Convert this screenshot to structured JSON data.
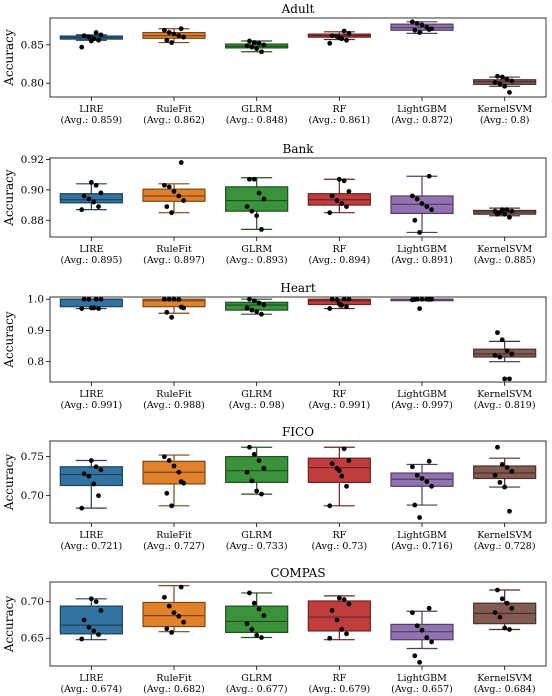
{
  "chart_data": [
    {
      "type": "box",
      "title": "Adult",
      "ylabel": "Accuracy",
      "ylim": [
        0.782,
        0.885
      ],
      "yticks": [
        "0.80",
        "0.85"
      ],
      "categories": [
        "LIRE",
        "RuleFit",
        "GLRM",
        "RF",
        "LightGBM",
        "KernelSVM"
      ],
      "averages": [
        "(Avg.: 0.859)",
        "(Avg.: 0.862)",
        "(Avg.: 0.848)",
        "(Avg.: 0.861)",
        "(Avg.: 0.872)",
        "(Avg.: 0.8)"
      ],
      "boxes": [
        {
          "q1": 0.8575,
          "q3": 0.8615,
          "median": 0.8595,
          "whisker_low": 0.856,
          "whisker_high": 0.863,
          "points": [
            0.847,
            0.856,
            0.858,
            0.86,
            0.862,
            0.863,
            0.866,
            0.855
          ]
        },
        {
          "q1": 0.8585,
          "q3": 0.866,
          "median": 0.862,
          "whisker_low": 0.853,
          "whisker_high": 0.871,
          "points": [
            0.853,
            0.856,
            0.86,
            0.862,
            0.864,
            0.866,
            0.869,
            0.871
          ]
        },
        {
          "q1": 0.846,
          "q3": 0.851,
          "median": 0.848,
          "whisker_low": 0.841,
          "whisker_high": 0.855,
          "points": [
            0.841,
            0.845,
            0.847,
            0.849,
            0.85,
            0.852,
            0.853,
            0.855
          ]
        },
        {
          "q1": 0.86,
          "q3": 0.864,
          "median": 0.862,
          "whisker_low": 0.857,
          "whisker_high": 0.867,
          "points": [
            0.852,
            0.856,
            0.858,
            0.861,
            0.862,
            0.865,
            0.868,
            0.859
          ]
        },
        {
          "q1": 0.869,
          "q3": 0.877,
          "median": 0.8725,
          "whisker_low": 0.865,
          "whisker_high": 0.88,
          "points": [
            0.866,
            0.869,
            0.871,
            0.873,
            0.876,
            0.878,
            0.88,
            0.87
          ]
        },
        {
          "q1": 0.7985,
          "q3": 0.8045,
          "median": 0.802,
          "whisker_low": 0.796,
          "whisker_high": 0.808,
          "points": [
            0.788,
            0.796,
            0.799,
            0.801,
            0.803,
            0.805,
            0.808,
            0.809
          ]
        }
      ]
    },
    {
      "type": "box",
      "title": "Bank",
      "ylabel": "Accuracy",
      "ylim": [
        0.869,
        0.921
      ],
      "yticks": [
        "0.88",
        "0.90",
        "0.92"
      ],
      "categories": [
        "LIRE",
        "RuleFit",
        "GLRM",
        "RF",
        "LightGBM",
        "KernelSVM"
      ],
      "averages": [
        "(Avg.: 0.895)",
        "(Avg.: 0.897)",
        "(Avg.: 0.893)",
        "(Avg.: 0.894)",
        "(Avg.: 0.891)",
        "(Avg.: 0.885)"
      ],
      "boxes": [
        {
          "q1": 0.8915,
          "q3": 0.8975,
          "median": 0.8935,
          "whisker_low": 0.887,
          "whisker_high": 0.904,
          "points": [
            0.887,
            0.889,
            0.892,
            0.894,
            0.896,
            0.898,
            0.903,
            0.905
          ]
        },
        {
          "q1": 0.8925,
          "q3": 0.9005,
          "median": 0.896,
          "whisker_low": 0.885,
          "whisker_high": 0.904,
          "points": [
            0.885,
            0.889,
            0.893,
            0.896,
            0.899,
            0.902,
            0.903,
            0.918
          ]
        },
        {
          "q1": 0.886,
          "q3": 0.902,
          "median": 0.893,
          "whisker_low": 0.874,
          "whisker_high": 0.908,
          "points": [
            0.874,
            0.883,
            0.886,
            0.889,
            0.894,
            0.898,
            0.907,
            0.907
          ]
        },
        {
          "q1": 0.89,
          "q3": 0.8975,
          "median": 0.8935,
          "whisker_low": 0.885,
          "whisker_high": 0.907,
          "points": [
            0.885,
            0.889,
            0.891,
            0.893,
            0.896,
            0.899,
            0.906,
            0.907
          ]
        },
        {
          "q1": 0.8845,
          "q3": 0.896,
          "median": 0.8905,
          "whisker_low": 0.872,
          "whisker_high": 0.909,
          "points": [
            0.872,
            0.88,
            0.887,
            0.889,
            0.891,
            0.894,
            0.896,
            0.909
          ]
        },
        {
          "q1": 0.884,
          "q3": 0.8865,
          "median": 0.8855,
          "whisker_low": 0.883,
          "whisker_high": 0.888,
          "points": [
            0.882,
            0.884,
            0.885,
            0.886,
            0.886,
            0.887,
            0.887,
            0.884
          ]
        }
      ]
    },
    {
      "type": "box",
      "title": "Heart",
      "ylabel": "Accuracy",
      "ylim": [
        0.735,
        1.007
      ],
      "yticks": [
        "0.8",
        "0.9",
        "1.0"
      ],
      "categories": [
        "LIRE",
        "RuleFit",
        "GLRM",
        "RF",
        "LightGBM",
        "KernelSVM"
      ],
      "averages": [
        "(Avg.: 0.991)",
        "(Avg.: 0.988)",
        "(Avg.: 0.98)",
        "(Avg.: 0.991)",
        "(Avg.: 0.997)",
        "(Avg.: 0.819)"
      ],
      "boxes": [
        {
          "q1": 0.976,
          "q3": 1.0,
          "median": 1.0,
          "whisker_low": 0.97,
          "whisker_high": 1.0,
          "points": [
            0.97,
            0.97,
            0.972,
            1.0,
            1.0,
            1.0,
            1.0,
            0.972
          ]
        },
        {
          "q1": 0.976,
          "q3": 1.0,
          "median": 0.995,
          "whisker_low": 0.955,
          "whisker_high": 1.0,
          "points": [
            0.942,
            0.958,
            0.972,
            0.999,
            1.0,
            1.0,
            1.0,
            0.975
          ]
        },
        {
          "q1": 0.965,
          "q3": 0.99,
          "median": 0.981,
          "whisker_low": 0.952,
          "whisker_high": 1.0,
          "points": [
            0.952,
            0.96,
            0.965,
            0.972,
            0.982,
            0.988,
            0.995,
            1.0
          ]
        },
        {
          "q1": 0.983,
          "q3": 1.0,
          "median": 0.995,
          "whisker_low": 0.97,
          "whisker_high": 1.0,
          "points": [
            0.97,
            0.976,
            0.98,
            0.998,
            1.0,
            1.0,
            1.0,
            0.985
          ]
        },
        {
          "q1": 0.998,
          "q3": 1.0,
          "median": 1.0,
          "whisker_low": 0.998,
          "whisker_high": 1.0,
          "points": [
            0.97,
            0.999,
            1.0,
            1.0,
            1.0,
            1.0,
            0.998,
            0.999
          ]
        },
        {
          "q1": 0.815,
          "q3": 0.84,
          "median": 0.825,
          "whisker_low": 0.8,
          "whisker_high": 0.865,
          "points": [
            0.745,
            0.745,
            0.815,
            0.82,
            0.825,
            0.835,
            0.87,
            0.893
          ]
        }
      ]
    },
    {
      "type": "box",
      "title": "FICO",
      "ylabel": "Accuracy",
      "ylim": [
        0.665,
        0.77
      ],
      "yticks": [
        "0.70",
        "0.75"
      ],
      "categories": [
        "LIRE",
        "RuleFit",
        "GLRM",
        "RF",
        "LightGBM",
        "KernelSVM"
      ],
      "averages": [
        "(Avg.: 0.721)",
        "(Avg.: 0.727)",
        "(Avg.: 0.733)",
        "(Avg.: 0.73)",
        "(Avg.: 0.716)",
        "(Avg.: 0.728)"
      ],
      "boxes": [
        {
          "q1": 0.713,
          "q3": 0.737,
          "median": 0.727,
          "whisker_low": 0.684,
          "whisker_high": 0.745,
          "points": [
            0.684,
            0.7,
            0.715,
            0.725,
            0.728,
            0.733,
            0.737,
            0.745
          ]
        },
        {
          "q1": 0.715,
          "q3": 0.744,
          "median": 0.73,
          "whisker_low": 0.687,
          "whisker_high": 0.752,
          "points": [
            0.687,
            0.703,
            0.716,
            0.73,
            0.738,
            0.745,
            0.75,
            0.718
          ]
        },
        {
          "q1": 0.717,
          "q3": 0.75,
          "median": 0.732,
          "whisker_low": 0.702,
          "whisker_high": 0.762,
          "points": [
            0.702,
            0.706,
            0.719,
            0.73,
            0.735,
            0.745,
            0.753,
            0.762
          ]
        },
        {
          "q1": 0.717,
          "q3": 0.748,
          "median": 0.736,
          "whisker_low": 0.687,
          "whisker_high": 0.762,
          "points": [
            0.687,
            0.712,
            0.725,
            0.735,
            0.741,
            0.745,
            0.76,
            0.732
          ]
        },
        {
          "q1": 0.712,
          "q3": 0.729,
          "median": 0.721,
          "whisker_low": 0.688,
          "whisker_high": 0.74,
          "points": [
            0.672,
            0.688,
            0.712,
            0.718,
            0.722,
            0.726,
            0.737,
            0.744
          ]
        },
        {
          "q1": 0.722,
          "q3": 0.738,
          "median": 0.729,
          "whisker_low": 0.711,
          "whisker_high": 0.748,
          "points": [
            0.68,
            0.711,
            0.717,
            0.726,
            0.731,
            0.736,
            0.74,
            0.762
          ]
        }
      ]
    },
    {
      "type": "box",
      "title": "COMPAS",
      "ylabel": "Accuracy",
      "ylim": [
        0.612,
        0.727
      ],
      "yticks": [
        "0.65",
        "0.70"
      ],
      "categories": [
        "LIRE",
        "RuleFit",
        "GLRM",
        "RF",
        "LightGBM",
        "KernelSVM"
      ],
      "averages": [
        "(Avg.: 0.674)",
        "(Avg.: 0.682)",
        "(Avg.: 0.677)",
        "(Avg.: 0.679)",
        "(Avg.: 0.657)",
        "(Avg.: 0.684)"
      ],
      "boxes": [
        {
          "q1": 0.656,
          "q3": 0.694,
          "median": 0.668,
          "whisker_low": 0.648,
          "whisker_high": 0.704,
          "points": [
            0.649,
            0.655,
            0.66,
            0.665,
            0.675,
            0.688,
            0.7,
            0.704
          ]
        },
        {
          "q1": 0.666,
          "q3": 0.699,
          "median": 0.681,
          "whisker_low": 0.659,
          "whisker_high": 0.722,
          "points": [
            0.658,
            0.663,
            0.672,
            0.68,
            0.685,
            0.694,
            0.706,
            0.72
          ]
        },
        {
          "q1": 0.658,
          "q3": 0.694,
          "median": 0.673,
          "whisker_low": 0.651,
          "whisker_high": 0.712,
          "points": [
            0.651,
            0.654,
            0.662,
            0.67,
            0.681,
            0.69,
            0.698,
            0.712
          ]
        },
        {
          "q1": 0.66,
          "q3": 0.701,
          "median": 0.679,
          "whisker_low": 0.648,
          "whisker_high": 0.708,
          "points": [
            0.65,
            0.656,
            0.662,
            0.675,
            0.688,
            0.697,
            0.703,
            0.705
          ]
        },
        {
          "q1": 0.648,
          "q3": 0.669,
          "median": 0.659,
          "whisker_low": 0.636,
          "whisker_high": 0.687,
          "points": [
            0.617,
            0.626,
            0.645,
            0.651,
            0.661,
            0.667,
            0.685,
            0.691
          ]
        },
        {
          "q1": 0.67,
          "q3": 0.698,
          "median": 0.684,
          "whisker_low": 0.662,
          "whisker_high": 0.716,
          "points": [
            0.662,
            0.664,
            0.679,
            0.685,
            0.691,
            0.698,
            0.704,
            0.716
          ]
        }
      ]
    }
  ],
  "colors": [
    "#3274a1",
    "#e1812c",
    "#3a923a",
    "#c03d3e",
    "#9372b2",
    "#845b53"
  ]
}
